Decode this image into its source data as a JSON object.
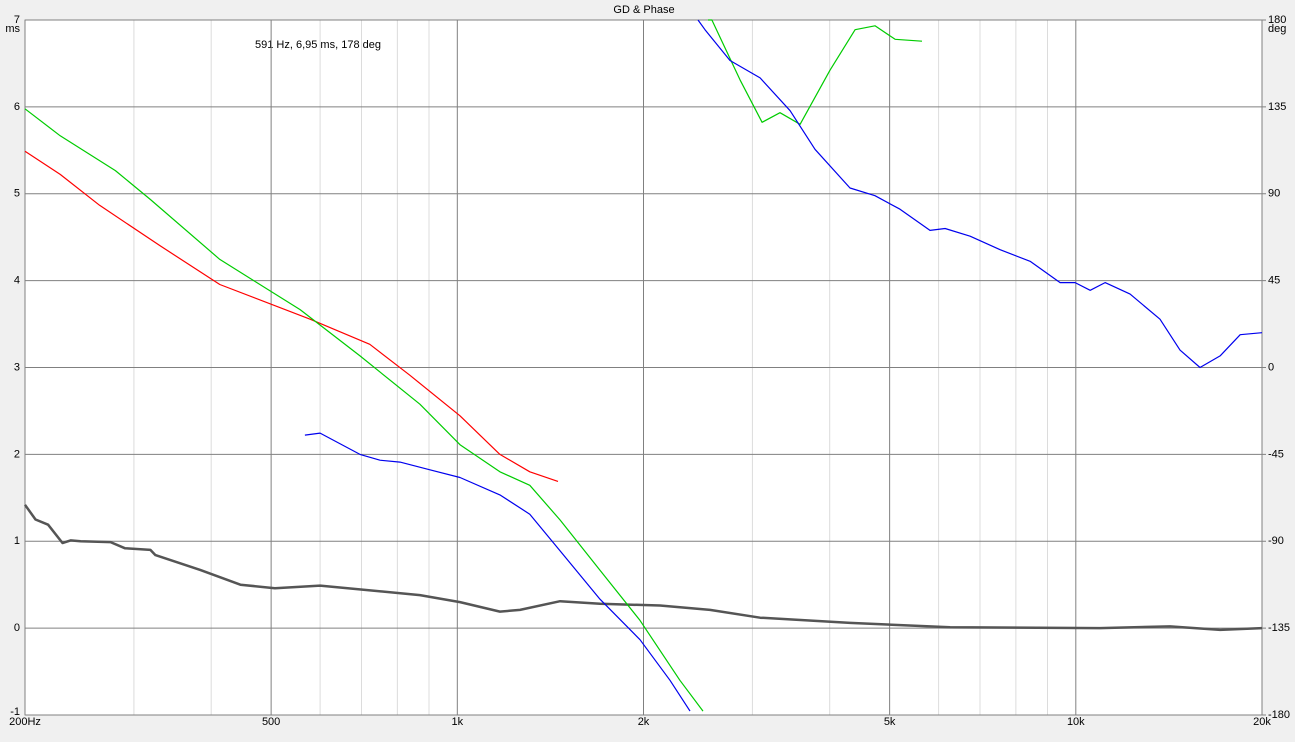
{
  "chart_data": {
    "type": "line",
    "title": "GD & Phase",
    "annotation": "591 Hz, 6,95 ms, 178 deg",
    "ylabel": "ms",
    "y2label": "deg",
    "xscale": "log",
    "xlim": [
      200,
      20000
    ],
    "xticks": [
      {
        "value": 200,
        "label": "200Hz"
      },
      500,
      {
        "value": 1000,
        "label": "1k"
      },
      {
        "value": 2000,
        "label": "2k"
      },
      {
        "value": 5000,
        "label": "5k"
      },
      {
        "value": 10000,
        "label": "10k"
      },
      {
        "value": 20000,
        "label": "20k"
      }
    ],
    "xminorticks": [
      300,
      400,
      600,
      700,
      800,
      900,
      3000,
      4000,
      6000,
      7000,
      8000,
      9000
    ],
    "ylim": [
      -1,
      7
    ],
    "yticks": [
      -1,
      0,
      1,
      2,
      3,
      4,
      5,
      6,
      7
    ],
    "y2lim": [
      -180,
      180
    ],
    "y2ticks": [
      -180,
      -135,
      -90,
      -45,
      0,
      45,
      90,
      135,
      180
    ],
    "grid": true,
    "series": [
      {
        "color": "#555555",
        "axis": "y",
        "x": [
          200,
          208,
          218,
          230,
          237,
          246,
          275,
          290,
          319,
          325,
          384,
          446,
          507,
          600,
          870,
          1010,
          1172,
          1263,
          1466,
          1701,
          2127,
          2562,
          3087,
          4315,
          6262,
          10943,
          14200,
          17110,
          20000
        ],
        "values": [
          1.42,
          1.25,
          1.19,
          0.98,
          1.01,
          1.0,
          0.99,
          0.92,
          0.9,
          0.84,
          0.67,
          0.5,
          0.46,
          0.49,
          0.38,
          0.3,
          0.19,
          0.21,
          0.31,
          0.28,
          0.26,
          0.21,
          0.12,
          0.06,
          0.01,
          0,
          0.02,
          -0.02,
          0
        ]
      },
      {
        "color": "#ff0000",
        "axis": "y2",
        "x": [
          200,
          228,
          264,
          331,
          413,
          578,
          722,
          838,
          1010,
          1172,
          1310,
          1455
        ],
        "values": [
          112,
          100,
          84,
          63,
          43,
          25,
          12,
          -4,
          -25,
          -45,
          -54,
          -59
        ]
      },
      {
        "color": "#00cc00",
        "axis": "y2",
        "x": [
          200,
          228,
          280,
          319,
          413,
          557,
          696,
          870,
          1010,
          1172,
          1310,
          1466,
          1701,
          1974,
          2290,
          2496,
          null,
          2543,
          2580,
          2865,
          3110,
          3325,
          3583,
          4004,
          4397,
          4735,
          5102,
          5641
        ],
        "values": [
          134,
          120,
          102,
          87,
          56,
          30,
          6,
          -19,
          -40,
          -54,
          -61,
          -79,
          -105,
          -131,
          -162,
          -178,
          null,
          180,
          180,
          149,
          127,
          132,
          126,
          154,
          175,
          177,
          170,
          169
        ]
      },
      {
        "color": "#0000ee",
        "axis": "y2",
        "x": [
          567,
          600,
          696,
          750,
          808,
          903,
          1010,
          1172,
          1310,
          1466,
          1701,
          1974,
          2207,
          2378,
          null,
          2450,
          2515,
          2760,
          3087,
          3452,
          3787,
          4315,
          4735,
          5197,
          5811,
          6146,
          6746,
          7544,
          8436,
          9432,
          9974,
          10550,
          11150,
          12240,
          13680,
          14740,
          15880,
          17110,
          18440,
          20000
        ],
        "values": [
          -35,
          -34,
          -45,
          -48,
          -49,
          -53,
          -57,
          -66,
          -76,
          -95,
          -120,
          -141,
          -162,
          -178,
          null,
          180,
          175,
          159,
          150,
          133,
          113,
          93,
          89,
          82,
          71,
          72,
          68,
          61,
          55,
          44,
          44,
          40,
          44,
          38,
          25,
          9,
          0,
          6,
          17,
          18
        ]
      }
    ]
  }
}
